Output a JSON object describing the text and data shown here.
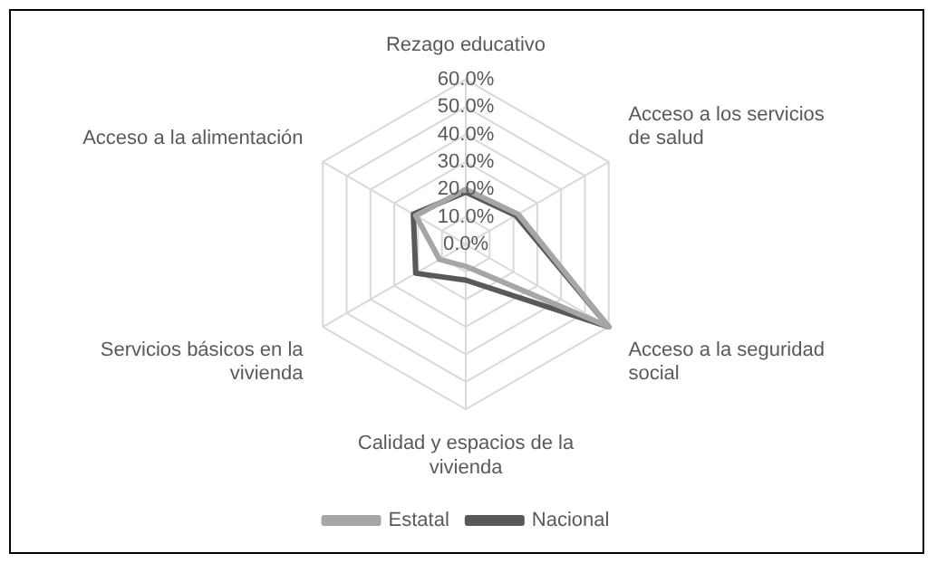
{
  "chart_data": {
    "type": "radar",
    "categories": [
      "Rezago educativo",
      "Acceso a los servicios de salud",
      "Acceso a la seguridad social",
      "Calidad y espacios de la vivienda",
      "Servicios básicos en la vivienda",
      "Acceso a la alimentación"
    ],
    "series": [
      {
        "name": "Estatal",
        "color": "#a6a6a6",
        "values": [
          20,
          22,
          60,
          8,
          11,
          21
        ]
      },
      {
        "name": "Nacional",
        "color": "#595959",
        "values": [
          19,
          21,
          60,
          13,
          21,
          22
        ]
      }
    ],
    "ylim": [
      0,
      60
    ],
    "yticks": [
      {
        "value": 0,
        "label": "0.0%"
      },
      {
        "value": 10,
        "label": "10.0%"
      },
      {
        "value": 20,
        "label": "20.0%"
      },
      {
        "value": 30,
        "label": "30.0%"
      },
      {
        "value": 40,
        "label": "40.0%"
      },
      {
        "value": 50,
        "label": "50.0%"
      },
      {
        "value": 60,
        "label": "60.0%"
      }
    ],
    "grid": true,
    "legend": "bottom",
    "marker": "none"
  }
}
